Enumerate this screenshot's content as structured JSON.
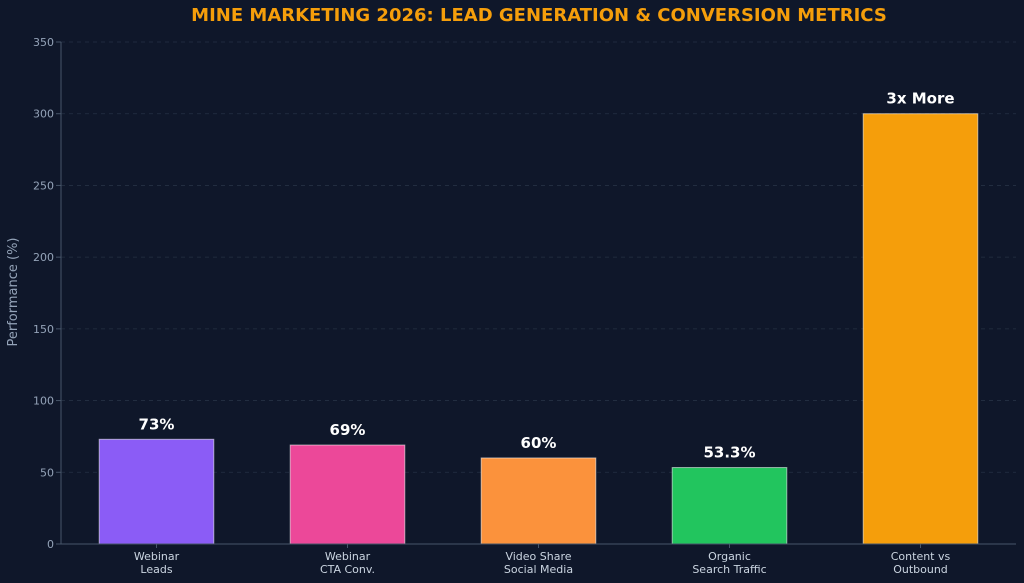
{
  "chart_data": {
    "type": "bar",
    "title": "MINE MARKETING 2026: LEAD GENERATION & CONVERSION METRICS",
    "xlabel": "",
    "ylabel": "Performance (%)",
    "ylim": [
      0,
      350
    ],
    "yticks": [
      0,
      50,
      100,
      150,
      200,
      250,
      300,
      350
    ],
    "grid": true,
    "categories": [
      [
        "Webinar",
        "Leads"
      ],
      [
        "Webinar",
        "CTA Conv."
      ],
      [
        "Video Share",
        "Social Media"
      ],
      [
        "Organic",
        "Search Traffic"
      ],
      [
        "Content vs",
        "Outbound"
      ]
    ],
    "values": [
      73,
      69,
      60,
      53.3,
      300
    ],
    "data_labels": [
      "73%",
      "69%",
      "60%",
      "53.3%",
      "3x More"
    ],
    "colors": [
      "#8b5cf6",
      "#ec4899",
      "#fb923c",
      "#22c55e",
      "#f59e0b"
    ],
    "title_color": "#f59e0b",
    "background": "#0f172a"
  }
}
